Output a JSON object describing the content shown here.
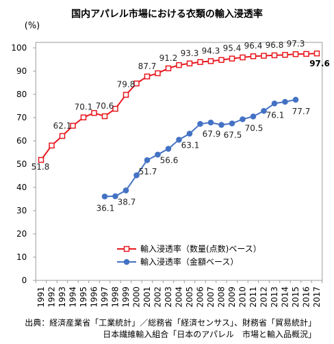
{
  "chart_data": {
    "type": "line",
    "title": "国内アパレル市場における衣類の輸入浸透率",
    "xlabel": "",
    "ylabel": "(%)",
    "ylim": [
      0,
      100
    ],
    "yticks": [
      0,
      10,
      20,
      30,
      40,
      50,
      60,
      70,
      80,
      90,
      100
    ],
    "x": [
      "1991",
      "1992",
      "1993",
      "1994",
      "1995",
      "1996",
      "1997",
      "1998",
      "1999",
      "2000",
      "2001",
      "2002",
      "2003",
      "2004",
      "2005",
      "2006",
      "2007",
      "2008",
      "2009",
      "2010",
      "2011",
      "2012",
      "2013",
      "2014",
      "2015",
      "2016",
      "2017"
    ],
    "grid": false,
    "legend": "lower-center",
    "series": [
      {
        "name": "輸入浸透率（数量(点数)ベース）",
        "color": "#E8161D",
        "marker": "square-open",
        "values": [
          51.8,
          58.0,
          62.1,
          66.5,
          70.1,
          72.0,
          70.6,
          73.8,
          79.8,
          84.7,
          87.7,
          89.1,
          91.2,
          92.6,
          93.3,
          93.9,
          94.3,
          94.8,
          95.4,
          95.9,
          96.4,
          96.6,
          96.8,
          97.0,
          97.3,
          97.4,
          97.6
        ],
        "data_labels": [
          "51.8",
          null,
          "62.1",
          null,
          "70.1",
          null,
          "70.6",
          null,
          "79.8",
          null,
          "87.7",
          null,
          "91.2",
          null,
          "93.3",
          null,
          "94.3",
          null,
          "95.4",
          null,
          "96.4",
          null,
          "96.8",
          null,
          "97.3",
          null,
          "97.6"
        ]
      },
      {
        "name": "輸入浸透率（金額ベース）",
        "color": "#4472C4",
        "marker": "circle-filled",
        "values": [
          null,
          null,
          null,
          null,
          null,
          null,
          36.1,
          36.2,
          38.7,
          45.2,
          51.7,
          54.1,
          56.6,
          60.5,
          63.1,
          67.3,
          67.9,
          66.9,
          67.5,
          69.3,
          70.5,
          72.9,
          76.1,
          76.8,
          77.7,
          null,
          null
        ],
        "data_labels": [
          null,
          null,
          null,
          null,
          null,
          null,
          "36.1",
          null,
          "38.7",
          null,
          "51.7",
          null,
          "56.6",
          null,
          "63.1",
          null,
          "67.9",
          null,
          "67.5",
          null,
          "70.5",
          null,
          "76.1",
          null,
          "77.7",
          null,
          null
        ]
      }
    ]
  },
  "source": [
    "出典：経済産業省「工業統計」／総務省「経済センサス」、財務省「貿易統計」",
    "日本繊維輸入組合「日本のアパレル　市場と輸入品概況」"
  ]
}
